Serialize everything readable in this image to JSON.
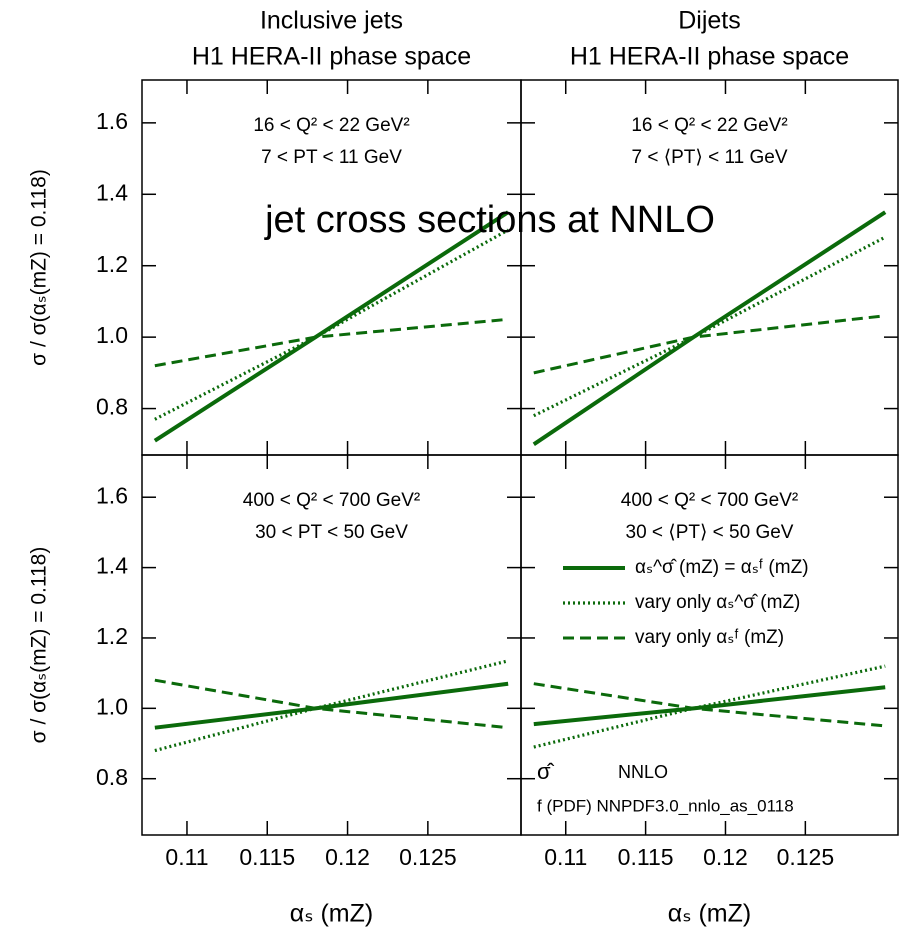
{
  "title": "jet cross sections at NNLO",
  "chart_data": [
    {
      "type": "line",
      "title": "Inclusive jets",
      "subtitle": "H1 HERA-II phase space",
      "ylabel": "σ / σ(αₛ(mZ) = 0.118)",
      "annotations": [
        "16 < Q² < 22 GeV²",
        "7 < PT < 11 GeV"
      ],
      "x": [
        0.108,
        0.118,
        0.13
      ],
      "series": [
        {
          "color": "#0b6a0b",
          "linestyle": "solid",
          "values": [
            0.71,
            1.0,
            1.35
          ]
        },
        {
          "color": "#0b6a0b",
          "linestyle": "dotted",
          "values": [
            0.77,
            1.0,
            1.3
          ]
        },
        {
          "color": "#0b6a0b",
          "linestyle": "dashed",
          "values": [
            0.92,
            1.0,
            1.05
          ]
        }
      ],
      "xlim": [
        0.1072,
        0.1308
      ],
      "ylim": [
        0.67,
        1.72
      ],
      "xticks": [
        0.11,
        0.115,
        0.12,
        0.125
      ],
      "yticks": [
        0.8,
        {
          "value": 1,
          "label": "1.0"
        },
        1.2,
        1.4,
        1.6
      ]
    },
    {
      "type": "line",
      "title": "Dijets",
      "subtitle": "H1 HERA-II phase space",
      "annotations": [
        "16 < Q² < 22 GeV²",
        "7 < ⟨PT⟩ < 11 GeV"
      ],
      "x": [
        0.108,
        0.118,
        0.13
      ],
      "series": [
        {
          "color": "#0b6a0b",
          "linestyle": "solid",
          "values": [
            0.7,
            1.0,
            1.35
          ]
        },
        {
          "color": "#0b6a0b",
          "linestyle": "dotted",
          "values": [
            0.78,
            1.0,
            1.28
          ]
        },
        {
          "color": "#0b6a0b",
          "linestyle": "dashed",
          "values": [
            0.9,
            1.0,
            1.06
          ]
        }
      ],
      "xlim": [
        0.1072,
        0.1308
      ],
      "ylim": [
        0.67,
        1.72
      ],
      "xticks": [
        0.11,
        0.115,
        0.12,
        0.125
      ],
      "yticks": [
        0.8,
        {
          "value": 1,
          "label": "1.0"
        },
        1.2,
        1.4,
        1.6
      ]
    },
    {
      "type": "line",
      "xlabel": "αₛ (mZ)",
      "ylabel": "σ / σ(αₛ(mZ) = 0.118)",
      "annotations": [
        "400 < Q² < 700 GeV²",
        "30 < PT < 50 GeV"
      ],
      "x": [
        0.108,
        0.118,
        0.13
      ],
      "series": [
        {
          "color": "#0b6a0b",
          "linestyle": "solid",
          "values": [
            0.945,
            1.0,
            1.07
          ]
        },
        {
          "color": "#0b6a0b",
          "linestyle": "dotted",
          "values": [
            0.88,
            1.0,
            1.135
          ]
        },
        {
          "color": "#0b6a0b",
          "linestyle": "dashed",
          "values": [
            1.08,
            1.0,
            0.945
          ]
        }
      ],
      "xlim": [
        0.1072,
        0.1308
      ],
      "ylim": [
        0.64,
        1.72
      ],
      "xticks": [
        0.11,
        0.115,
        0.12,
        0.125
      ],
      "yticks": [
        0.8,
        {
          "value": 1,
          "label": "1.0"
        },
        1.2,
        1.4,
        1.6
      ]
    },
    {
      "type": "line",
      "xlabel": "αₛ (mZ)",
      "annotations": [
        "400 < Q² < 700 GeV²",
        "30 < ⟨PT⟩ < 50 GeV"
      ],
      "notes": [
        "σ̂",
        "NNLO",
        "f (PDF) NNPDF3.0_nnlo_as_0118"
      ],
      "x": [
        0.108,
        0.118,
        0.13
      ],
      "series": [
        {
          "name": "αₛ^σ̂ (mZ) = αₛᶠ (mZ)",
          "color": "#0b6a0b",
          "linestyle": "solid",
          "values": [
            0.955,
            1.0,
            1.06
          ]
        },
        {
          "name": "vary only αₛ^σ̂ (mZ)",
          "color": "#0b6a0b",
          "linestyle": "dotted",
          "values": [
            0.89,
            1.0,
            1.12
          ]
        },
        {
          "name": "vary only αₛᶠ (mZ)",
          "color": "#0b6a0b",
          "linestyle": "dashed",
          "values": [
            1.07,
            1.0,
            0.95
          ]
        }
      ],
      "xlim": [
        0.1072,
        0.1308
      ],
      "ylim": [
        0.64,
        1.72
      ],
      "xticks": [
        0.11,
        0.115,
        0.12,
        0.125
      ],
      "yticks": [
        0.8,
        {
          "value": 1,
          "label": "1.0"
        },
        1.2,
        1.4,
        1.6
      ]
    }
  ]
}
